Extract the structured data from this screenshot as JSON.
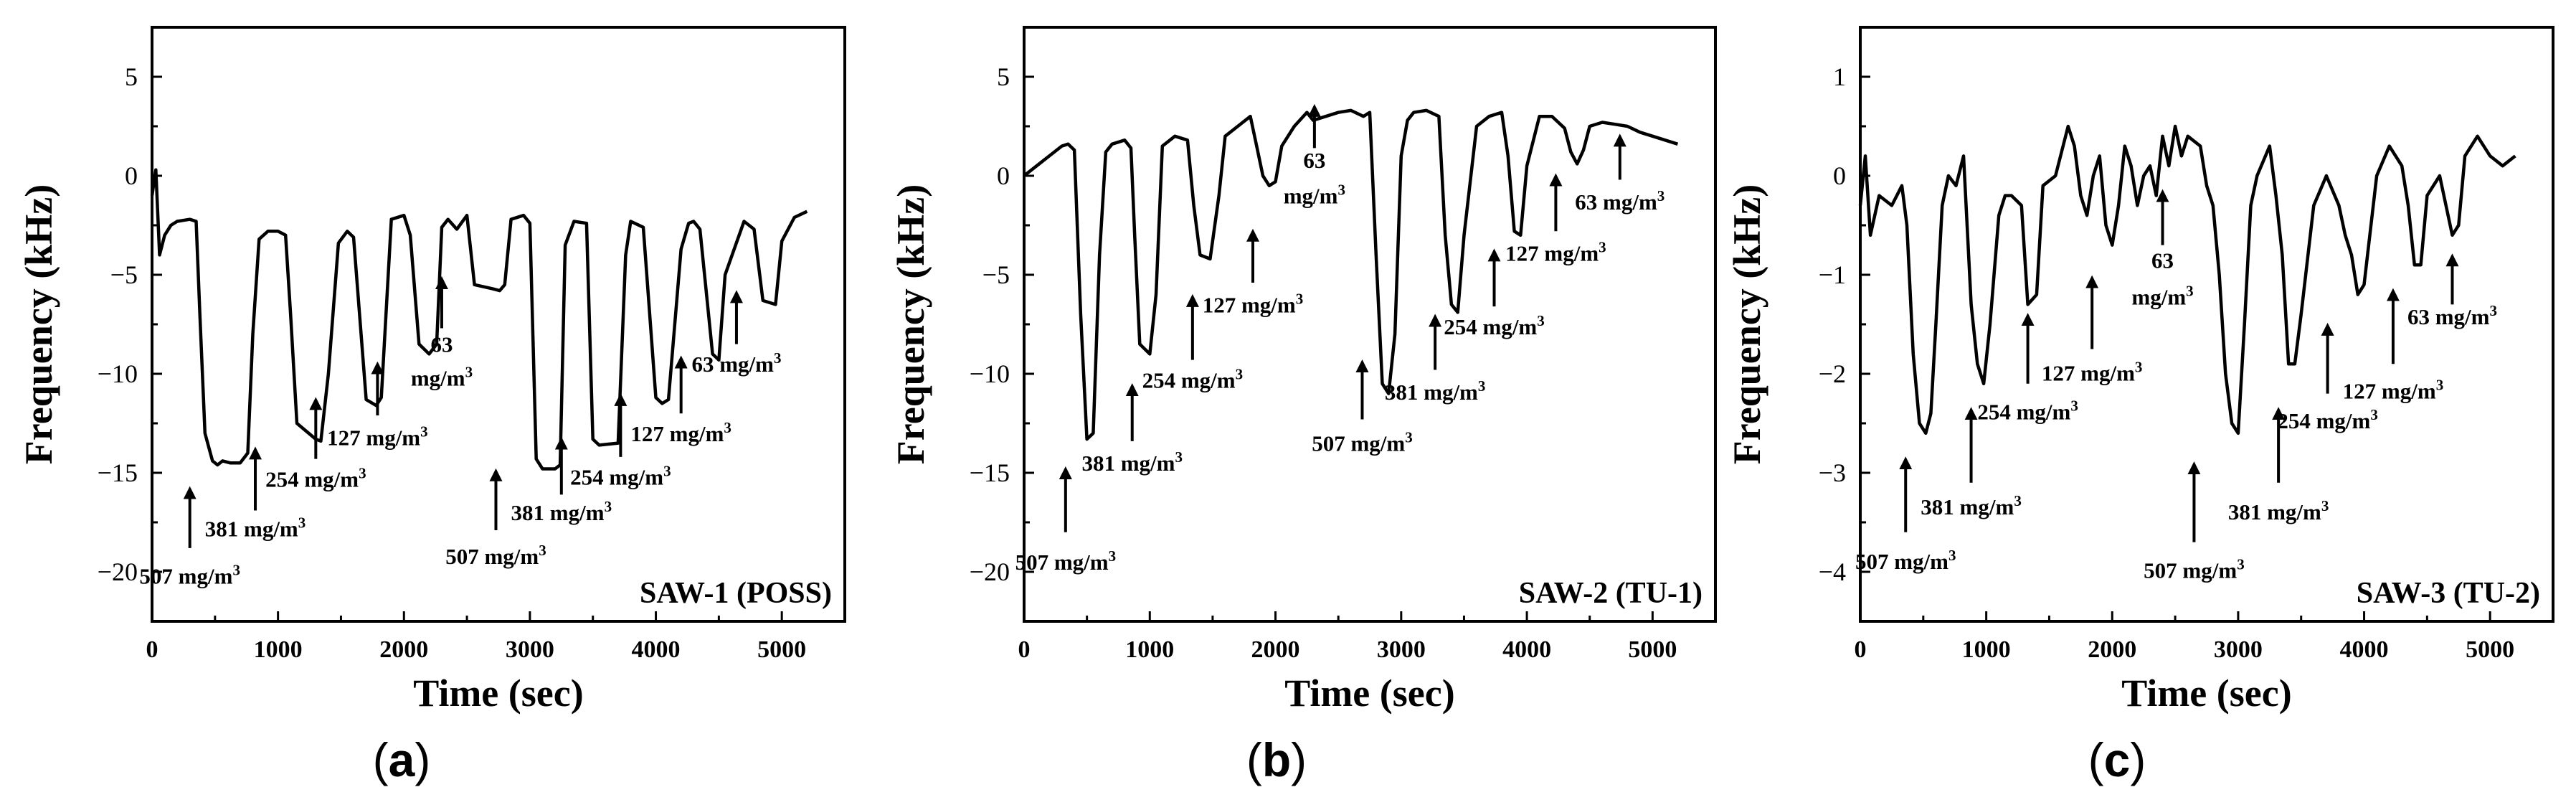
{
  "colors": {
    "line": "#000000",
    "background": "#ffffff"
  },
  "chart_data": [
    {
      "type": "line",
      "panel": "(a)",
      "panel_letter": "a",
      "label": "SAW-1 (POSS)",
      "xlabel": "Time (sec)",
      "ylabel": "Frequency (kHz)",
      "xlim": [
        0,
        5500
      ],
      "ylim": [
        -22.5,
        7.5
      ],
      "xticks": [
        0,
        1000,
        2000,
        3000,
        4000,
        5000
      ],
      "yticks": [
        -20,
        -15,
        -10,
        -5,
        0,
        5
      ],
      "series": [
        {
          "name": "SAW-1 (POSS)",
          "x": [
            0,
            30,
            60,
            100,
            150,
            200,
            300,
            350,
            380,
            420,
            480,
            520,
            560,
            620,
            700,
            760,
            800,
            850,
            920,
            1000,
            1060,
            1100,
            1150,
            1300,
            1340,
            1400,
            1480,
            1550,
            1600,
            1700,
            1780,
            1820,
            1900,
            2000,
            2050,
            2120,
            2200,
            2260,
            2300,
            2350,
            2420,
            2500,
            2560,
            2700,
            2760,
            2800,
            2850,
            2950,
            3000,
            3050,
            3100,
            3200,
            3240,
            3280,
            3350,
            3450,
            3500,
            3550,
            3700,
            3760,
            3800,
            3900,
            4000,
            4050,
            4100,
            4200,
            4260,
            4300,
            4350,
            4450,
            4500,
            4550,
            4700,
            4780,
            4850,
            4950,
            5000,
            5100,
            5200
          ],
          "y": [
            -1,
            0.3,
            -4,
            -3,
            -2.5,
            -2.3,
            -2.2,
            -2.3,
            -7,
            -13,
            -14.4,
            -14.6,
            -14.4,
            -14.5,
            -14.5,
            -14,
            -8,
            -3.2,
            -2.8,
            -2.8,
            -3,
            -7,
            -12.5,
            -13.3,
            -13.4,
            -10,
            -3.4,
            -2.8,
            -3.1,
            -11.3,
            -11.6,
            -11.2,
            -2.2,
            -2,
            -3,
            -8.5,
            -9,
            -8.5,
            -2.6,
            -2.2,
            -2.7,
            -2,
            -5.5,
            -5.7,
            -5.8,
            -5.5,
            -2.2,
            -2,
            -2.4,
            -14.3,
            -14.8,
            -14.8,
            -14.6,
            -3.5,
            -2.3,
            -2.4,
            -13.3,
            -13.6,
            -13.5,
            -4,
            -2.3,
            -2.6,
            -11.2,
            -11.5,
            -11.3,
            -3.7,
            -2.4,
            -2.3,
            -2.7,
            -9,
            -9.3,
            -5,
            -2.3,
            -2.7,
            -6.3,
            -6.5,
            -3.3,
            -2.1,
            -1.8
          ]
        }
      ],
      "annotations": [
        {
          "lines": [
            "507 mg/m³"
          ],
          "x": 300,
          "arrow": [
            -18.8,
            -16
          ],
          "text_y": [
            -20.6
          ]
        },
        {
          "lines": [
            "381 mg/m³"
          ],
          "x": 820,
          "arrow": [
            -16.9,
            -14
          ],
          "text_y": [
            -18.2
          ]
        },
        {
          "lines": [
            "254 mg/m³"
          ],
          "x": 1300,
          "arrow": [
            -14.3,
            -11.5
          ],
          "text_y": [
            -15.7
          ]
        },
        {
          "lines": [
            "127 mg/m³"
          ],
          "x": 1790,
          "arrow": [
            -12.1,
            -9.7
          ],
          "text_y": [
            -13.6
          ]
        },
        {
          "lines": [
            "63",
            "mg/m³"
          ],
          "x": 2300,
          "arrow": [
            -7.7,
            -5.4
          ],
          "text_y": [
            -8.9,
            -10.6
          ]
        },
        {
          "lines": [
            "507 mg/m³"
          ],
          "x": 2730,
          "arrow": [
            -17.9,
            -15.1
          ],
          "text_y": [
            -19.6
          ]
        },
        {
          "lines": [
            "381 mg/m³"
          ],
          "x": 3250,
          "arrow": [
            -16.1,
            -13.5
          ],
          "text_y": [
            -17.4
          ]
        },
        {
          "lines": [
            "254 mg/m³"
          ],
          "x": 3720,
          "arrow": [
            -14.2,
            -11.3
          ],
          "text_y": [
            -15.6
          ]
        },
        {
          "lines": [
            "127 mg/m³"
          ],
          "x": 4200,
          "arrow": [
            -12,
            -9.4
          ],
          "text_y": [
            -13.4
          ]
        },
        {
          "lines": [
            "63 mg/m³"
          ],
          "x": 4640,
          "arrow": [
            -8.5,
            -6.1
          ],
          "text_y": [
            -9.9
          ]
        }
      ]
    },
    {
      "type": "line",
      "panel": "(b)",
      "panel_letter": "b",
      "label": "SAW-2 (TU-1)",
      "xlabel": "Time (sec)",
      "ylabel": "Frequency (kHz)",
      "xlim": [
        0,
        5500
      ],
      "ylim": [
        -22.5,
        7.5
      ],
      "xticks": [
        0,
        1000,
        2000,
        3000,
        4000,
        5000
      ],
      "yticks": [
        -20,
        -15,
        -10,
        -5,
        0,
        5
      ],
      "series": [
        {
          "name": "SAW-2 (TU-1)",
          "x": [
            0,
            100,
            200,
            300,
            350,
            400,
            450,
            500,
            550,
            600,
            650,
            700,
            800,
            850,
            880,
            920,
            1000,
            1050,
            1100,
            1200,
            1300,
            1350,
            1400,
            1480,
            1550,
            1600,
            1700,
            1800,
            1850,
            1900,
            1950,
            2000,
            2050,
            2150,
            2250,
            2300,
            2400,
            2500,
            2600,
            2700,
            2750,
            2800,
            2850,
            2900,
            2950,
            3000,
            3050,
            3100,
            3200,
            3300,
            3350,
            3400,
            3450,
            3500,
            3600,
            3700,
            3800,
            3850,
            3900,
            3950,
            4000,
            4100,
            4200,
            4300,
            4350,
            4400,
            4450,
            4500,
            4600,
            4700,
            4800,
            4900,
            5000,
            5100,
            5200
          ],
          "y": [
            0,
            0.5,
            1,
            1.5,
            1.6,
            1.3,
            -7,
            -13.3,
            -13,
            -4,
            1.2,
            1.6,
            1.8,
            1.4,
            -3,
            -8.5,
            -9,
            -6,
            1.5,
            2,
            1.8,
            -1.5,
            -4,
            -4.2,
            -1,
            2,
            2.5,
            3,
            1.5,
            0,
            -0.5,
            -0.3,
            1.5,
            2.5,
            3.2,
            2.8,
            3,
            3.2,
            3.3,
            3,
            3.2,
            -4,
            -10.5,
            -11,
            -8,
            1,
            2.8,
            3.2,
            3.3,
            3,
            -3,
            -6.5,
            -6.9,
            -3,
            2.5,
            3,
            3.2,
            1,
            -2.8,
            -3,
            0.5,
            3,
            3,
            2.4,
            1.2,
            0.6,
            1.3,
            2.5,
            2.7,
            2.6,
            2.5,
            2.2,
            2,
            1.8,
            1.6
          ]
        }
      ],
      "annotations": [
        {
          "lines": [
            "507 mg/m³"
          ],
          "x": 330,
          "arrow": [
            -18,
            -15
          ],
          "text_y": [
            -19.9
          ]
        },
        {
          "lines": [
            "381 mg/m³"
          ],
          "x": 860,
          "arrow": [
            -13.4,
            -10.8
          ],
          "text_y": [
            -14.9
          ]
        },
        {
          "lines": [
            "254 mg/m³"
          ],
          "x": 1340,
          "arrow": [
            -9.3,
            -6.3
          ],
          "text_y": [
            -10.7
          ]
        },
        {
          "lines": [
            "127 mg/m³"
          ],
          "x": 1820,
          "arrow": [
            -5.4,
            -3
          ],
          "text_y": [
            -6.9
          ]
        },
        {
          "lines": [
            "63",
            "mg/m³"
          ],
          "x": 2310,
          "arrow": [
            1.4,
            3.3
          ],
          "text_y": [
            0.4,
            -1.4
          ]
        },
        {
          "lines": [
            "507 mg/m³"
          ],
          "x": 2690,
          "arrow": [
            -12.3,
            -9.6
          ],
          "text_y": [
            -13.9
          ]
        },
        {
          "lines": [
            "381 mg/m³"
          ],
          "x": 3270,
          "arrow": [
            -9.8,
            -7.3
          ],
          "text_y": [
            -11.3
          ]
        },
        {
          "lines": [
            "254 mg/m³"
          ],
          "x": 3740,
          "arrow": [
            -6.6,
            -4
          ],
          "text_y": [
            -8
          ]
        },
        {
          "lines": [
            "127 mg/m³"
          ],
          "x": 4230,
          "arrow": [
            -2.8,
            -0.2
          ],
          "text_y": [
            -4.3
          ]
        },
        {
          "lines": [
            "63 mg/m³"
          ],
          "x": 4740,
          "arrow": [
            -0.2,
            1.8
          ],
          "text_y": [
            -1.7
          ]
        }
      ]
    },
    {
      "type": "line",
      "panel": "(c)",
      "panel_letter": "c",
      "label": "SAW-3 (TU-2)",
      "xlabel": "Time (sec)",
      "ylabel": "Frequency (kHz)",
      "xlim": [
        0,
        5500
      ],
      "ylim": [
        -4.5,
        1.5
      ],
      "xticks": [
        0,
        1000,
        2000,
        3000,
        4000,
        5000
      ],
      "yticks": [
        -4,
        -3,
        -2,
        -1,
        0,
        1
      ],
      "series": [
        {
          "name": "SAW-3 (TU-2)",
          "x": [
            0,
            40,
            80,
            150,
            250,
            330,
            370,
            420,
            470,
            520,
            560,
            600,
            650,
            700,
            760,
            820,
            880,
            930,
            980,
            1030,
            1100,
            1150,
            1200,
            1280,
            1330,
            1400,
            1450,
            1550,
            1650,
            1700,
            1750,
            1800,
            1850,
            1900,
            1950,
            2000,
            2050,
            2100,
            2150,
            2200,
            2250,
            2300,
            2350,
            2400,
            2450,
            2500,
            2550,
            2600,
            2700,
            2750,
            2800,
            2850,
            2900,
            2950,
            3000,
            3050,
            3100,
            3150,
            3250,
            3300,
            3350,
            3400,
            3450,
            3500,
            3600,
            3700,
            3800,
            3850,
            3900,
            3950,
            4000,
            4100,
            4200,
            4250,
            4300,
            4350,
            4400,
            4450,
            4500,
            4600,
            4700,
            4750,
            4800,
            4900,
            5000,
            5100,
            5200
          ],
          "y": [
            -0.3,
            0.2,
            -0.6,
            -0.2,
            -0.3,
            -0.1,
            -0.5,
            -1.8,
            -2.5,
            -2.6,
            -2.4,
            -1.5,
            -0.3,
            0,
            -0.1,
            0.2,
            -1.3,
            -1.9,
            -2.1,
            -1.5,
            -0.4,
            -0.2,
            -0.2,
            -0.3,
            -1.3,
            -1.2,
            -0.1,
            0,
            0.5,
            0.3,
            -0.2,
            -0.4,
            0,
            0.2,
            -0.5,
            -0.7,
            -0.3,
            0.3,
            0.1,
            -0.3,
            0,
            0.1,
            -0.2,
            0.4,
            0.1,
            0.5,
            0.2,
            0.4,
            0.3,
            -0.1,
            -0.3,
            -1,
            -2,
            -2.5,
            -2.6,
            -1.5,
            -0.3,
            0,
            0.3,
            -0.2,
            -0.8,
            -1.9,
            -1.9,
            -1.4,
            -0.3,
            0,
            -0.3,
            -0.6,
            -0.8,
            -1.2,
            -1.1,
            0,
            0.3,
            0.2,
            0.1,
            -0.3,
            -0.9,
            -0.9,
            -0.2,
            0,
            -0.6,
            -0.5,
            0.2,
            0.4,
            0.2,
            0.1,
            0.2
          ]
        }
      ],
      "annotations": [
        {
          "lines": [
            "507 mg/m³"
          ],
          "x": 360,
          "arrow": [
            -3.6,
            -2.9
          ],
          "text_y": [
            -3.97
          ]
        },
        {
          "lines": [
            "381 mg/m³"
          ],
          "x": 880,
          "arrow": [
            -3.1,
            -2.4
          ],
          "text_y": [
            -3.42
          ]
        },
        {
          "lines": [
            "254 mg/m³"
          ],
          "x": 1330,
          "arrow": [
            -2.1,
            -1.45
          ],
          "text_y": [
            -2.46
          ]
        },
        {
          "lines": [
            "127 mg/m³"
          ],
          "x": 1840,
          "arrow": [
            -1.75,
            -1.07
          ],
          "text_y": [
            -2.07
          ]
        },
        {
          "lines": [
            "63",
            "mg/m³"
          ],
          "x": 2400,
          "arrow": [
            -0.7,
            -0.2
          ],
          "text_y": [
            -0.93,
            -1.3
          ]
        },
        {
          "lines": [
            "507 mg/m³"
          ],
          "x": 2650,
          "arrow": [
            -3.7,
            -2.95
          ],
          "text_y": [
            -4.06
          ]
        },
        {
          "lines": [
            "381 mg/m³"
          ],
          "x": 3320,
          "arrow": [
            -3.1,
            -2.4
          ],
          "text_y": [
            -3.47
          ]
        },
        {
          "lines": [
            "254 mg/m³"
          ],
          "x": 3710,
          "arrow": [
            -2.2,
            -1.55
          ],
          "text_y": [
            -2.55
          ]
        },
        {
          "lines": [
            "127 mg/m³"
          ],
          "x": 4230,
          "arrow": [
            -1.9,
            -1.2
          ],
          "text_y": [
            -2.25
          ]
        },
        {
          "lines": [
            "63 mg/m³"
          ],
          "x": 4700,
          "arrow": [
            -1.3,
            -0.85
          ],
          "text_y": [
            -1.5
          ]
        }
      ]
    }
  ]
}
